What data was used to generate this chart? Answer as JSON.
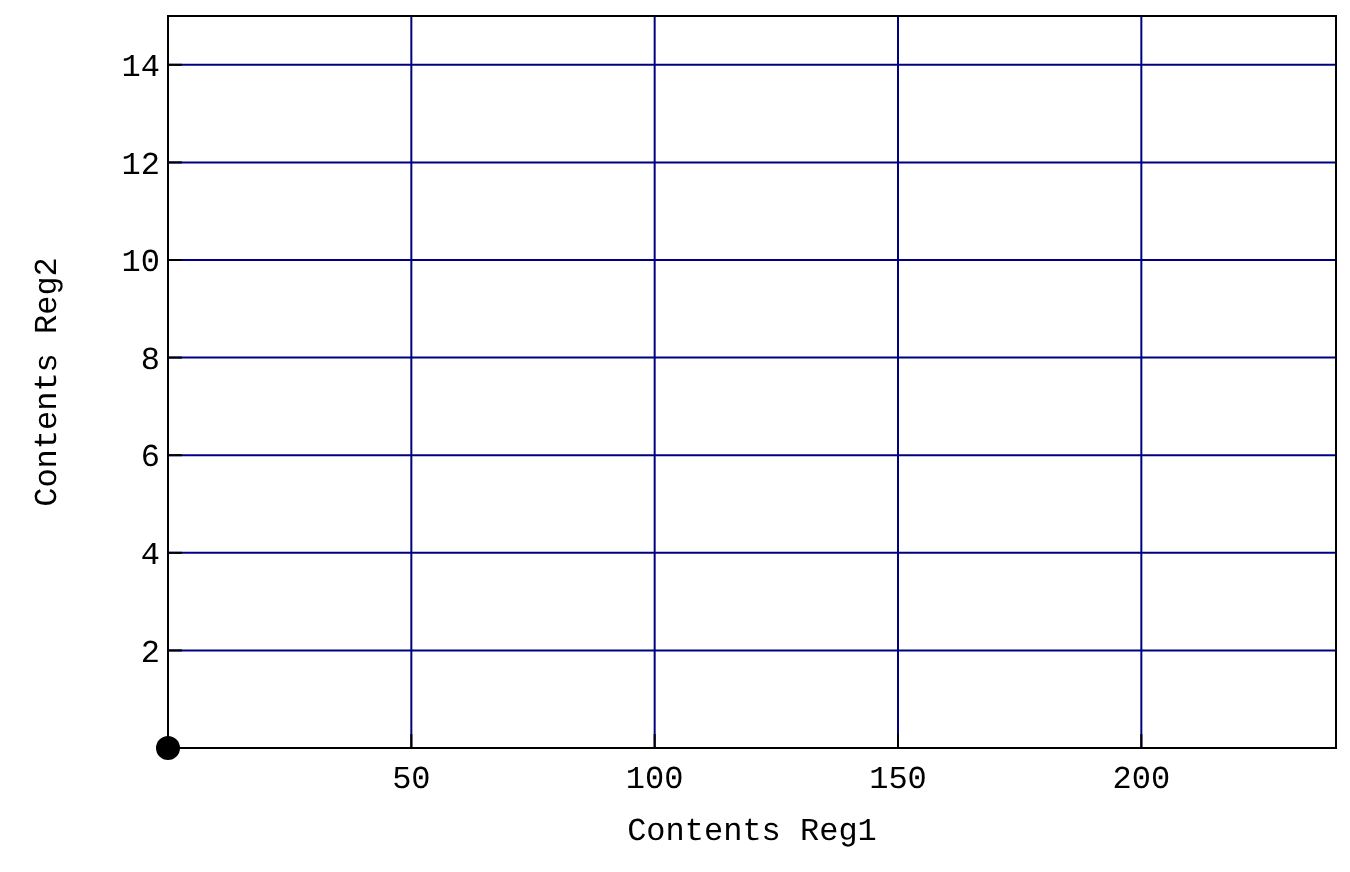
{
  "chart_data": {
    "type": "scatter",
    "xlabel": "Contents Reg1",
    "ylabel": "Contents Reg2",
    "xlim": [
      0,
      240
    ],
    "ylim": [
      0,
      15
    ],
    "xticks": [
      50,
      100,
      150,
      200
    ],
    "yticks": [
      2,
      4,
      6,
      8,
      10,
      12,
      14
    ],
    "grid": true,
    "marker": "circle",
    "series": [
      {
        "color": "#000000",
        "x": [
          0
        ],
        "values": [
          0
        ]
      }
    ]
  }
}
